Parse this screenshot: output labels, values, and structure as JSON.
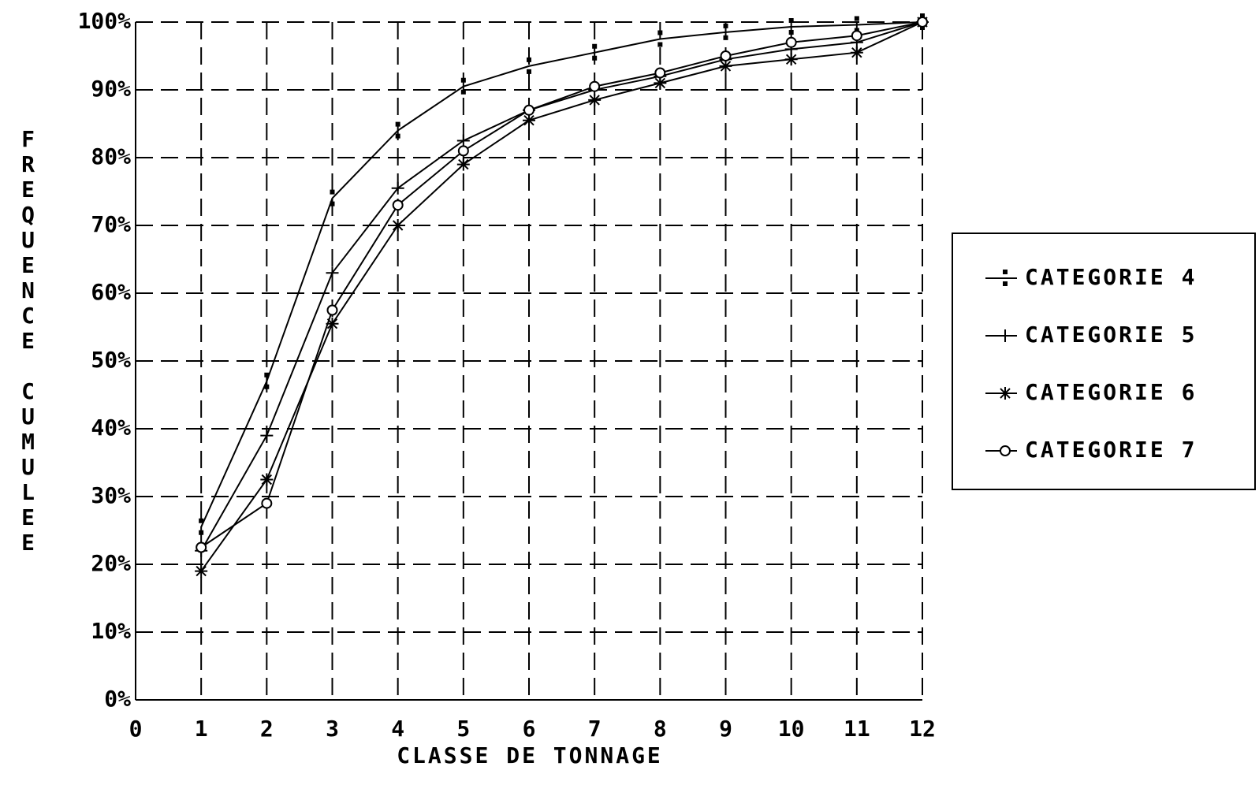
{
  "chart_data": {
    "type": "line",
    "x_label": "CLASSE DE TONNAGE",
    "y_label": "FREQUENCE CUMULEE",
    "x": [
      1,
      2,
      3,
      4,
      5,
      6,
      7,
      8,
      9,
      10,
      11,
      12
    ],
    "xlim": [
      0,
      12
    ],
    "xticks": [
      0,
      1,
      2,
      3,
      4,
      5,
      6,
      7,
      8,
      9,
      10,
      11,
      12
    ],
    "ylim": [
      0,
      100
    ],
    "yticks": [
      {
        "value": 0,
        "label": "0%"
      },
      {
        "value": 10,
        "label": "10%"
      },
      {
        "value": 20,
        "label": "20%"
      },
      {
        "value": 30,
        "label": "30%"
      },
      {
        "value": 40,
        "label": "40%"
      },
      {
        "value": 50,
        "label": "50%"
      },
      {
        "value": 60,
        "label": "60%"
      },
      {
        "value": 70,
        "label": "70%"
      },
      {
        "value": 80,
        "label": "80%"
      },
      {
        "value": 90,
        "label": "90%"
      },
      {
        "value": 100,
        "label": "100%"
      }
    ],
    "grid": true,
    "legend": "right",
    "series": [
      {
        "name": "CATEGORIE 4",
        "color": "#000000",
        "marker": "dot",
        "values": [
          25.5,
          47,
          74,
          84,
          90.5,
          93.5,
          95.5,
          97.5,
          98.5,
          99.3,
          99.6,
          100
        ]
      },
      {
        "name": "CATEGORIE 5",
        "color": "#000000",
        "marker": "plus",
        "values": [
          22,
          39,
          63,
          75.5,
          82.5,
          87,
          90,
          92,
          94.5,
          96,
          97,
          100
        ]
      },
      {
        "name": "CATEGORIE 6",
        "color": "#000000",
        "marker": "star",
        "values": [
          19,
          32.5,
          55.5,
          70,
          79,
          85.5,
          88.5,
          91,
          93.5,
          94.5,
          95.5,
          100
        ]
      },
      {
        "name": "CATEGORIE 7",
        "color": "#000000",
        "marker": "circle",
        "values": [
          22.5,
          29,
          57.5,
          73,
          81,
          87,
          90.5,
          92.5,
          95,
          97,
          98,
          100
        ]
      }
    ]
  }
}
